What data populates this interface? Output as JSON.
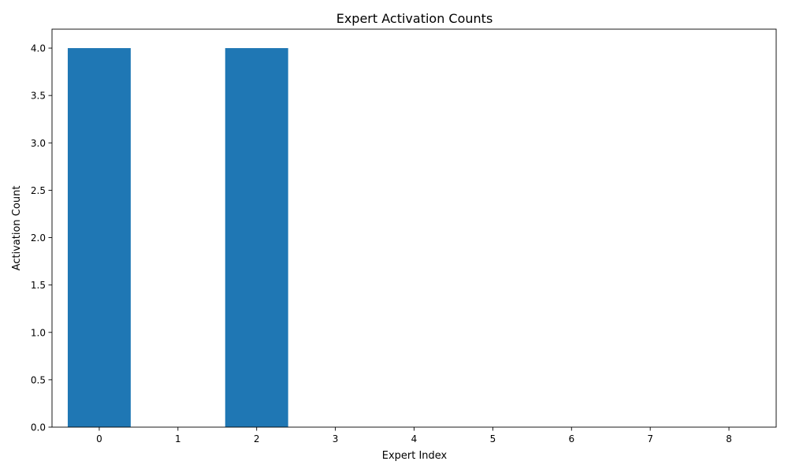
{
  "chart_data": {
    "type": "bar",
    "title": "Expert Activation Counts",
    "xlabel": "Expert Index",
    "ylabel": "Activation Count",
    "categories": [
      "0",
      "1",
      "2",
      "3",
      "4",
      "5",
      "6",
      "7",
      "8"
    ],
    "values": [
      4,
      0,
      4,
      0,
      0,
      0,
      0,
      0,
      0
    ],
    "ylim": [
      0,
      4.2
    ],
    "yticks": [
      "0.0",
      "0.5",
      "1.0",
      "1.5",
      "2.0",
      "2.5",
      "3.0",
      "3.5",
      "4.0"
    ],
    "grid": false,
    "legend": "none",
    "bar_color": "#1f77b4"
  }
}
